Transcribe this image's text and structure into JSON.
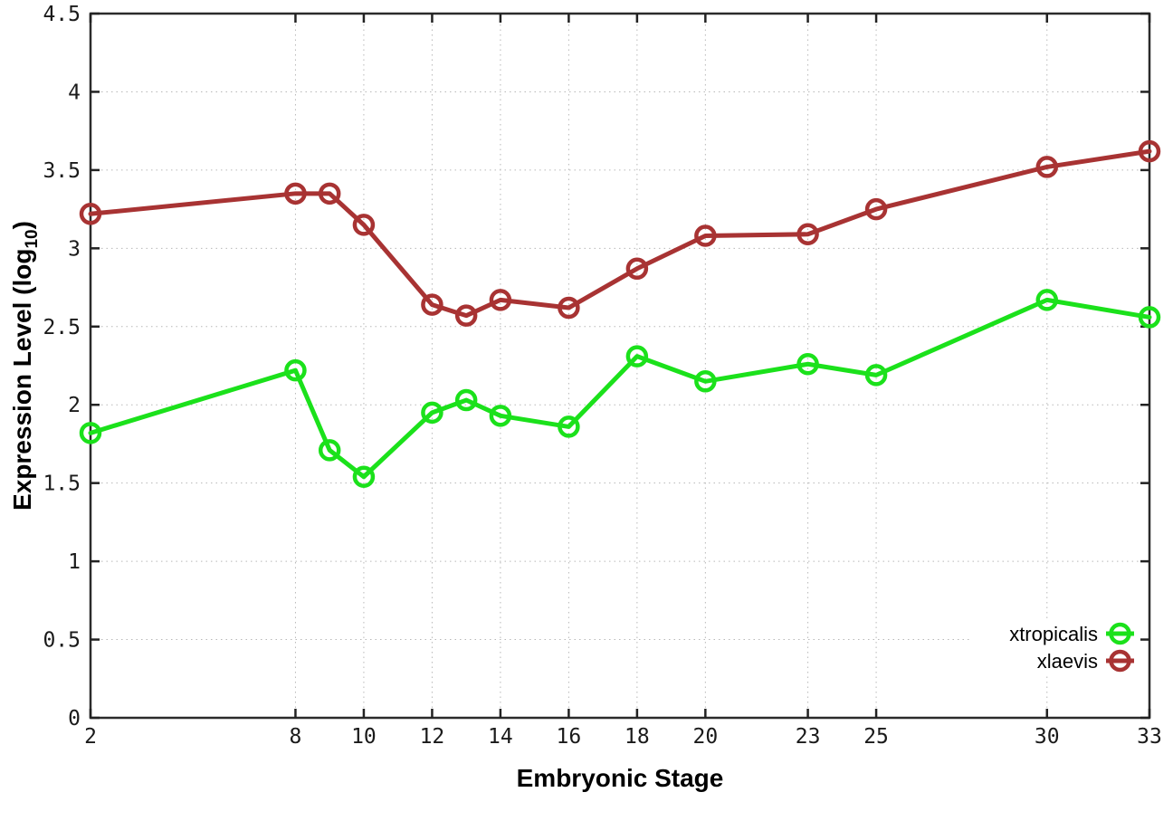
{
  "figure": {
    "background": "#ffffff",
    "border_color": "#2b2b2b",
    "grid_color": "#b8b8b8",
    "tick_color": "#222222",
    "text_color": "#1a1a1a"
  },
  "chart_data": {
    "type": "line",
    "title": "",
    "xlabel": "Embryonic Stage",
    "ylabel": "Expression Level (log10)",
    "ylabel_parts": {
      "main": "Expression Level (log",
      "sub": "10",
      "end": ")"
    },
    "xlim": [
      2,
      33
    ],
    "ylim": [
      0,
      4.5
    ],
    "x_ticks": [
      2,
      8,
      10,
      12,
      14,
      16,
      18,
      20,
      23,
      25,
      30,
      33
    ],
    "y_ticks": [
      0,
      0.5,
      1,
      1.5,
      2,
      2.5,
      3,
      3.5,
      4,
      4.5
    ],
    "grid": true,
    "legend": {
      "position": "inside-bottom-right",
      "entries": [
        "xtropicalis",
        "xlaevis"
      ]
    },
    "x": [
      2,
      8,
      9,
      10,
      12,
      13,
      14,
      16,
      18,
      20,
      23,
      25,
      30,
      33
    ],
    "series": [
      {
        "name": "xtropicalis",
        "color": "#1be11b",
        "marker": "open-circle",
        "values": [
          1.82,
          2.22,
          1.71,
          1.54,
          1.95,
          2.03,
          1.93,
          1.86,
          2.31,
          2.15,
          2.26,
          2.19,
          2.67,
          2.56
        ]
      },
      {
        "name": "xlaevis",
        "color": "#a83333",
        "marker": "open-circle",
        "values": [
          3.22,
          3.35,
          3.35,
          3.15,
          2.64,
          2.57,
          2.67,
          2.62,
          2.87,
          3.08,
          3.09,
          3.25,
          3.52,
          3.62
        ]
      }
    ]
  }
}
